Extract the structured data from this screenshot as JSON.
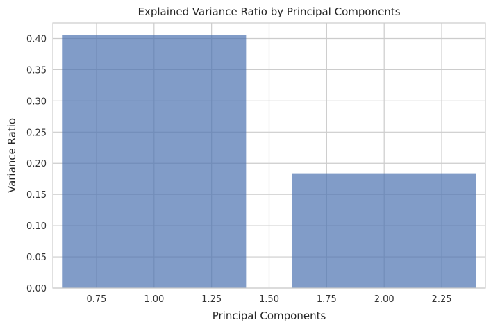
{
  "chart_data": {
    "type": "bar",
    "title": "Explained Variance Ratio by Principal Components",
    "xlabel": "Principal Components",
    "ylabel": "Variance Ratio",
    "x": [
      1,
      2
    ],
    "values": [
      0.405,
      0.184
    ],
    "bar_width": 0.8,
    "xlim": [
      0.56,
      2.44
    ],
    "ylim": [
      0,
      0.425
    ],
    "xticks": [
      0.75,
      1.0,
      1.25,
      1.5,
      1.75,
      2.0,
      2.25
    ],
    "xtick_labels": [
      "0.75",
      "1.00",
      "1.25",
      "1.50",
      "1.75",
      "2.00",
      "2.25"
    ],
    "yticks": [
      0,
      0.05,
      0.1,
      0.15,
      0.2,
      0.25,
      0.3,
      0.35,
      0.4
    ],
    "ytick_labels": [
      "0.00",
      "0.05",
      "0.10",
      "0.15",
      "0.20",
      "0.25",
      "0.30",
      "0.35",
      "0.40"
    ],
    "grid": true,
    "bar_color": "#4c72b0",
    "bar_alpha": 0.7,
    "grid_color": "#cccccc",
    "frame_color": "#cccccc"
  }
}
